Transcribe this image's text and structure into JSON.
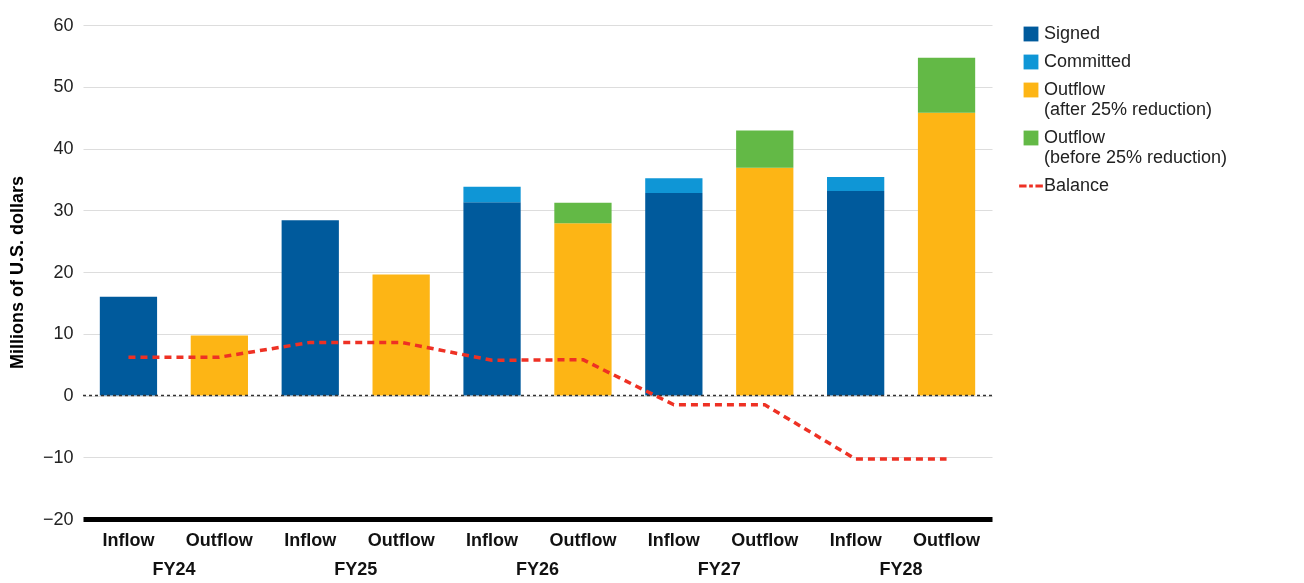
{
  "chart_data": {
    "type": "bar",
    "stacked": true,
    "ylabel": "Millions of U.S. dollars",
    "categories": [
      "Inflow",
      "Outflow",
      "Inflow",
      "Outflow",
      "Inflow",
      "Outflow",
      "Inflow",
      "Outflow",
      "Inflow",
      "Outflow"
    ],
    "series": [
      {
        "name": "Signed",
        "color": "#005a9c",
        "values": [
          16.0,
          null,
          28.4,
          null,
          31.3,
          null,
          32.8,
          null,
          33.1,
          null
        ]
      },
      {
        "name": "Committed",
        "color": "#0f96d6",
        "values": [
          null,
          null,
          null,
          null,
          2.5,
          null,
          2.4,
          null,
          2.3,
          null
        ]
      },
      {
        "name": "Outflow (after 25% reduction)",
        "color": "#fdb515",
        "values": [
          null,
          9.7,
          null,
          19.6,
          null,
          27.9,
          null,
          36.9,
          null,
          45.8
        ]
      },
      {
        "name": "Outflow (before 25% reduction)",
        "color": "#63b946",
        "values": [
          null,
          null,
          null,
          null,
          null,
          3.3,
          null,
          6.0,
          null,
          8.9
        ]
      },
      {
        "name": "Balance",
        "type": "line",
        "line_style": "dashed",
        "color": "#ee3124",
        "values": [
          6.2,
          6.2,
          8.6,
          8.6,
          5.7,
          5.8,
          -1.5,
          -1.5,
          -10.3,
          -10.3
        ]
      }
    ],
    "ylim": [
      -20,
      60
    ],
    "yticks": [
      -20,
      -10,
      0,
      10,
      20,
      30,
      40,
      50,
      60
    ],
    "grid": "y",
    "legend": "right",
    "ref_lines": [
      {
        "axis": "y",
        "value": 0,
        "color": "#333333",
        "line_style": "dotted"
      }
    ],
    "annotations": [
      "FY24",
      "FY25",
      "FY26",
      "FY27",
      "FY28"
    ]
  }
}
